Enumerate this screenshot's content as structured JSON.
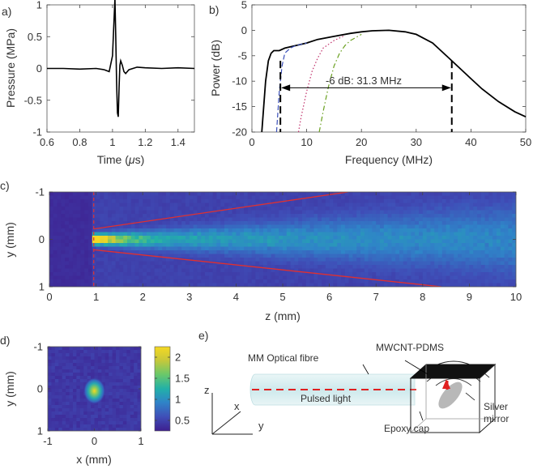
{
  "panel_labels": [
    "a)",
    "b)",
    "c)",
    "d)",
    "e)"
  ],
  "chart_data": [
    {
      "id": "a",
      "type": "line",
      "xlabel_pre": "Time (",
      "xlabel_mu": "μ",
      "xlabel_post": "s)",
      "ylabel": "Pressure (MPa)",
      "xlim": [
        0.6,
        1.5
      ],
      "ylim": [
        -1,
        1
      ],
      "xticks": [
        "0.6",
        "0.8",
        "1",
        "1.2",
        "1.4"
      ],
      "xtick_values": [
        0.6,
        0.8,
        1.0,
        1.2,
        1.4
      ],
      "yticks": [
        "-1",
        "-0.5",
        "0",
        "0.5",
        "1"
      ],
      "ytick_values": [
        -1,
        -0.5,
        0,
        0.5,
        1
      ],
      "series": [
        {
          "name": "pressure",
          "color": "#000000",
          "x": [
            0.6,
            0.7,
            0.8,
            0.9,
            0.95,
            0.98,
            1.0,
            1.01,
            1.015,
            1.02,
            1.025,
            1.03,
            1.035,
            1.04,
            1.045,
            1.05,
            1.06,
            1.07,
            1.08,
            1.1,
            1.15,
            1.2,
            1.3,
            1.4,
            1.5
          ],
          "y": [
            0.0,
            0.0,
            -0.01,
            0.0,
            -0.02,
            -0.05,
            0.2,
            0.8,
            1.1,
            0.5,
            -0.2,
            -0.7,
            -0.76,
            -0.3,
            0.05,
            0.12,
            0.05,
            -0.05,
            -0.08,
            -0.02,
            0.02,
            0.01,
            0.0,
            0.01,
            0.0
          ]
        }
      ]
    },
    {
      "id": "b",
      "type": "line",
      "xlabel": "Frequency (MHz)",
      "ylabel": "Power (dB)",
      "xlim": [
        0,
        50
      ],
      "ylim": [
        -20,
        5
      ],
      "xticks": [
        "0",
        "10",
        "20",
        "30",
        "40",
        "50"
      ],
      "xtick_values": [
        0,
        10,
        20,
        30,
        40,
        50
      ],
      "yticks": [
        "-20",
        "-15",
        "-10",
        "-5",
        "0",
        "5"
      ],
      "ytick_values": [
        -20,
        -15,
        -10,
        -5,
        0,
        5
      ],
      "annotation": "-6 dB: 31.3 MHz",
      "bandwidth_edges": [
        5.2,
        36.5
      ],
      "series": [
        {
          "name": "black",
          "color": "#000000",
          "style": "solid",
          "x": [
            1.8,
            2.5,
            3.0,
            3.5,
            4.0,
            5.0,
            6.0,
            8.0,
            10,
            12,
            15,
            18,
            20,
            22,
            25,
            28,
            30,
            33,
            36,
            38,
            40,
            42,
            45,
            48,
            50
          ],
          "y": [
            -20,
            -10,
            -6,
            -4.5,
            -4,
            -4,
            -3.5,
            -3,
            -2.5,
            -1.8,
            -1.2,
            -0.6,
            -0.3,
            -0.1,
            0,
            -0.3,
            -0.8,
            -2.5,
            -5.5,
            -7.5,
            -9.5,
            -11.5,
            -14,
            -16,
            -17
          ]
        },
        {
          "name": "blue",
          "color": "#3a4fb8",
          "style": "dashed",
          "x": [
            4.5,
            5.0,
            5.5,
            6.0,
            7.0,
            8.0,
            10
          ],
          "y": [
            -20,
            -12,
            -7,
            -4.5,
            -3.5,
            -3,
            -2.5
          ]
        },
        {
          "name": "magenta",
          "color": "#c0306a",
          "style": "dotted",
          "x": [
            8.5,
            9.0,
            10,
            11,
            12,
            13,
            15,
            17
          ],
          "y": [
            -20,
            -17,
            -12,
            -8,
            -5.5,
            -3.5,
            -2,
            -1
          ]
        },
        {
          "name": "green",
          "color": "#6aa020",
          "style": "dashdot",
          "x": [
            12.3,
            13,
            14,
            15,
            16,
            17,
            18,
            20
          ],
          "y": [
            -20,
            -16,
            -11,
            -7,
            -4.5,
            -3,
            -2,
            -0.8
          ]
        }
      ]
    },
    {
      "id": "c",
      "type": "heatmap",
      "xlabel": "z (mm)",
      "ylabel": "y (mm)",
      "xlim": [
        0,
        10
      ],
      "ylim": [
        -1,
        1
      ],
      "xticks": [
        "0",
        "1",
        "2",
        "3",
        "4",
        "5",
        "6",
        "7",
        "8",
        "9",
        "10"
      ],
      "xtick_values": [
        0,
        1,
        2,
        3,
        4,
        5,
        6,
        7,
        8,
        9,
        10
      ],
      "yticks": [
        "-1",
        "0",
        "1"
      ],
      "ytick_values": [
        -1,
        0,
        1
      ],
      "cone_lines": [
        [
          [
            0.95,
            -0.22
          ],
          [
            6.4,
            -1.0
          ]
        ],
        [
          [
            0.95,
            0.22
          ],
          [
            8.4,
            1.0
          ]
        ]
      ],
      "source_z": 0.95,
      "colormap": [
        "#3e1f8f",
        "#3f4fb8",
        "#2f84c8",
        "#22b0a8",
        "#6ac86a",
        "#c8c83a",
        "#f5d823"
      ]
    },
    {
      "id": "d",
      "type": "heatmap",
      "xlabel": "x (mm)",
      "ylabel": "y (mm)",
      "xlim": [
        -1,
        1
      ],
      "ylim": [
        -1,
        1
      ],
      "xticks": [
        "-1",
        "0",
        "1"
      ],
      "xtick_values": [
        -1,
        0,
        1
      ],
      "yticks": [
        "-1",
        "0",
        "1"
      ],
      "ytick_values": [
        -1,
        0,
        1
      ],
      "colorbar_ticks": [
        "0.5",
        "1",
        "1.5",
        "2"
      ],
      "colorbar_values": [
        0.5,
        1.0,
        1.5,
        2.0
      ],
      "colorbar_range": [
        0.25,
        2.25
      ],
      "spot_center": [
        0.0,
        0.05
      ]
    }
  ],
  "diagram_e": {
    "labels": {
      "mwcnt": "MWCNT-PDMS",
      "fibre": "MM Optical fibre",
      "light": "Pulsed light",
      "cap": "Epoxy cap",
      "mirror_1": "Silver",
      "mirror_2": "mirror",
      "ax_z": "z",
      "ax_x": "x",
      "ax_y": "y"
    }
  }
}
